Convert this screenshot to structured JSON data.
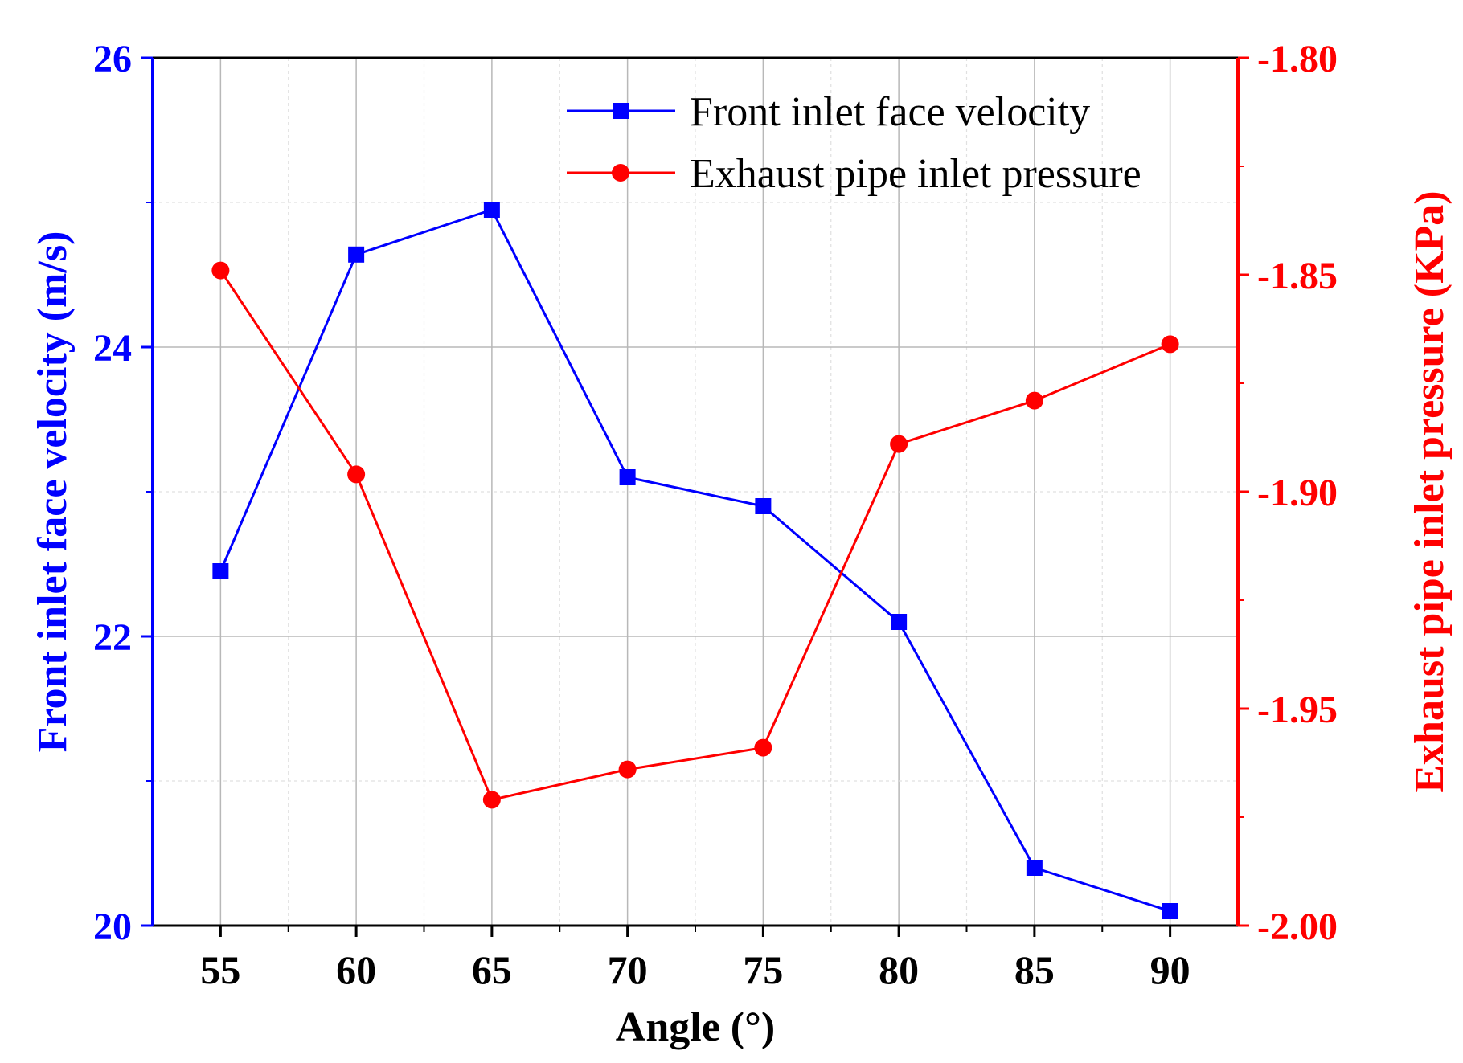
{
  "chart_data": {
    "type": "line",
    "title": "",
    "xlabel": "Angle (°)",
    "ylabel_left": "Front inlet face velocity (m/s)",
    "ylabel_right": "Exhaust pipe inlet pressure (KPa)",
    "x": [
      55,
      60,
      65,
      70,
      75,
      80,
      85,
      90
    ],
    "x_ticks": [
      "55",
      "60",
      "65",
      "70",
      "75",
      "80",
      "85",
      "90"
    ],
    "xlim": [
      52.5,
      92.5
    ],
    "y_left_lim": [
      20,
      26
    ],
    "y_left_ticks": [
      "20",
      "22",
      "24",
      "26"
    ],
    "y_right_lim": [
      -2.0,
      -1.8
    ],
    "y_right_ticks": [
      "-2.00",
      "-1.95",
      "-1.90",
      "-1.85",
      "-1.80"
    ],
    "grid": true,
    "legend_position": "top-right",
    "series": [
      {
        "name": "Front inlet face velocity",
        "axis": "left",
        "color": "#0000ff",
        "marker": "square",
        "values": [
          22.45,
          24.64,
          24.95,
          23.1,
          22.9,
          22.1,
          20.4,
          20.1
        ]
      },
      {
        "name": "Exhaust pipe inlet pressure",
        "axis": "right",
        "color": "#ff0000",
        "marker": "circle",
        "values": [
          -1.849,
          -1.896,
          -1.971,
          -1.964,
          -1.959,
          -1.889,
          -1.879,
          -1.866
        ]
      }
    ]
  }
}
